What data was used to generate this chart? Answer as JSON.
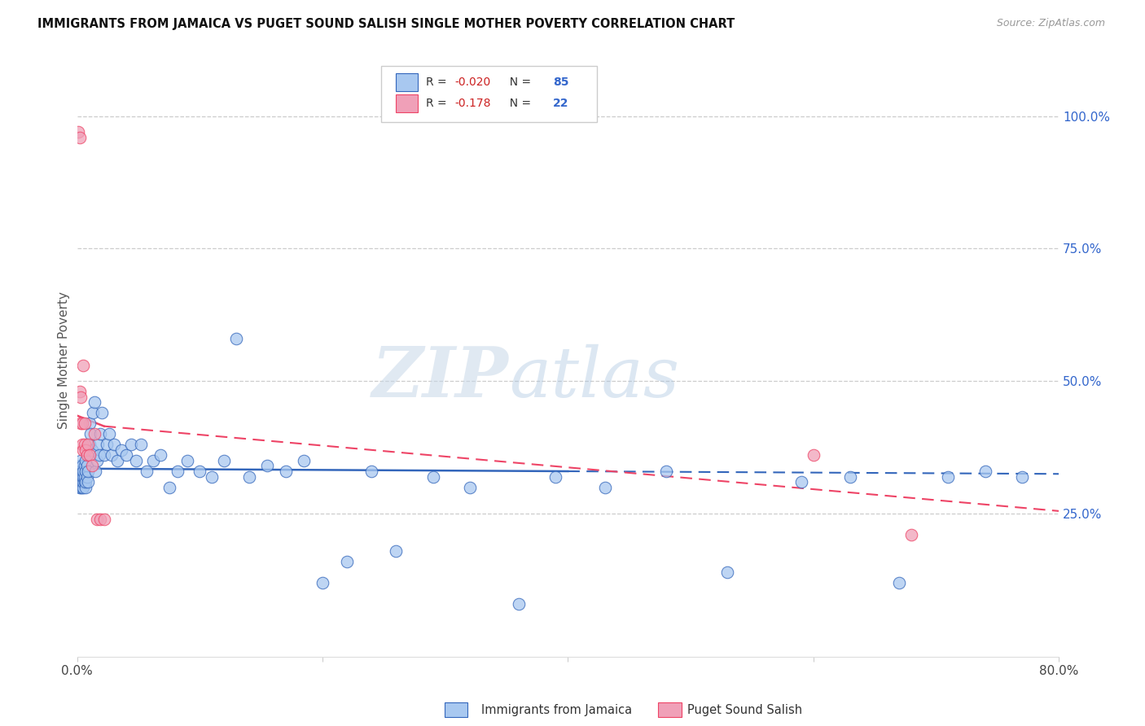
{
  "title": "IMMIGRANTS FROM JAMAICA VS PUGET SOUND SALISH SINGLE MOTHER POVERTY CORRELATION CHART",
  "source": "Source: ZipAtlas.com",
  "ylabel": "Single Mother Poverty",
  "xlim": [
    0.0,
    0.8
  ],
  "ylim": [
    -0.02,
    1.1
  ],
  "xtick_positions": [
    0.0,
    0.2,
    0.4,
    0.6,
    0.8
  ],
  "xtick_labels": [
    "0.0%",
    "",
    "",
    "",
    "80.0%"
  ],
  "ytick_positions": [
    0.25,
    0.5,
    0.75,
    1.0
  ],
  "ytick_labels": [
    "25.0%",
    "50.0%",
    "75.0%",
    "100.0%"
  ],
  "blue_color": "#a8c8f0",
  "pink_color": "#f0a0b8",
  "blue_line_color": "#3366bb",
  "pink_line_color": "#ee4466",
  "R_blue": -0.02,
  "N_blue": 85,
  "R_pink": -0.178,
  "N_pink": 22,
  "legend_label_blue": "Immigrants from Jamaica",
  "legend_label_pink": "Puget Sound Salish",
  "watermark_zip": "ZIP",
  "watermark_atlas": "atlas",
  "blue_x": [
    0.001,
    0.001,
    0.001,
    0.002,
    0.002,
    0.002,
    0.002,
    0.003,
    0.003,
    0.003,
    0.003,
    0.003,
    0.004,
    0.004,
    0.004,
    0.004,
    0.005,
    0.005,
    0.005,
    0.005,
    0.006,
    0.006,
    0.006,
    0.007,
    0.007,
    0.007,
    0.007,
    0.008,
    0.008,
    0.009,
    0.009,
    0.01,
    0.01,
    0.011,
    0.012,
    0.013,
    0.014,
    0.015,
    0.016,
    0.017,
    0.018,
    0.019,
    0.02,
    0.022,
    0.024,
    0.026,
    0.028,
    0.03,
    0.033,
    0.036,
    0.04,
    0.044,
    0.048,
    0.052,
    0.057,
    0.062,
    0.068,
    0.075,
    0.082,
    0.09,
    0.1,
    0.11,
    0.12,
    0.13,
    0.14,
    0.155,
    0.17,
    0.185,
    0.2,
    0.22,
    0.24,
    0.26,
    0.29,
    0.32,
    0.36,
    0.39,
    0.43,
    0.48,
    0.53,
    0.59,
    0.63,
    0.67,
    0.71,
    0.74,
    0.77
  ],
  "blue_y": [
    0.33,
    0.32,
    0.31,
    0.3,
    0.32,
    0.33,
    0.34,
    0.3,
    0.31,
    0.33,
    0.35,
    0.32,
    0.3,
    0.31,
    0.32,
    0.34,
    0.3,
    0.31,
    0.32,
    0.33,
    0.31,
    0.32,
    0.34,
    0.3,
    0.31,
    0.33,
    0.35,
    0.32,
    0.34,
    0.31,
    0.33,
    0.38,
    0.42,
    0.4,
    0.37,
    0.44,
    0.46,
    0.33,
    0.35,
    0.38,
    0.36,
    0.4,
    0.44,
    0.36,
    0.38,
    0.4,
    0.36,
    0.38,
    0.35,
    0.37,
    0.36,
    0.38,
    0.35,
    0.38,
    0.33,
    0.35,
    0.36,
    0.3,
    0.33,
    0.35,
    0.33,
    0.32,
    0.35,
    0.58,
    0.32,
    0.34,
    0.33,
    0.35,
    0.12,
    0.16,
    0.33,
    0.18,
    0.32,
    0.3,
    0.08,
    0.32,
    0.3,
    0.33,
    0.14,
    0.31,
    0.32,
    0.12,
    0.32,
    0.33,
    0.32
  ],
  "pink_x": [
    0.001,
    0.002,
    0.002,
    0.003,
    0.003,
    0.004,
    0.004,
    0.005,
    0.005,
    0.006,
    0.006,
    0.007,
    0.008,
    0.009,
    0.01,
    0.012,
    0.014,
    0.016,
    0.019,
    0.022,
    0.6,
    0.68
  ],
  "pink_y": [
    0.97,
    0.96,
    0.48,
    0.42,
    0.47,
    0.38,
    0.42,
    0.37,
    0.53,
    0.38,
    0.42,
    0.37,
    0.36,
    0.38,
    0.36,
    0.34,
    0.4,
    0.24,
    0.24,
    0.24,
    0.36,
    0.21
  ],
  "blue_line_x0": 0.0,
  "blue_line_x1": 0.4,
  "blue_line_x2": 0.8,
  "blue_line_y0": 0.335,
  "blue_line_y1": 0.33,
  "blue_line_y2": 0.325,
  "pink_line_x0": 0.0,
  "pink_line_x1": 0.022,
  "pink_line_x2": 0.8,
  "pink_line_y0": 0.435,
  "pink_line_y1": 0.415,
  "pink_line_y2": 0.255
}
